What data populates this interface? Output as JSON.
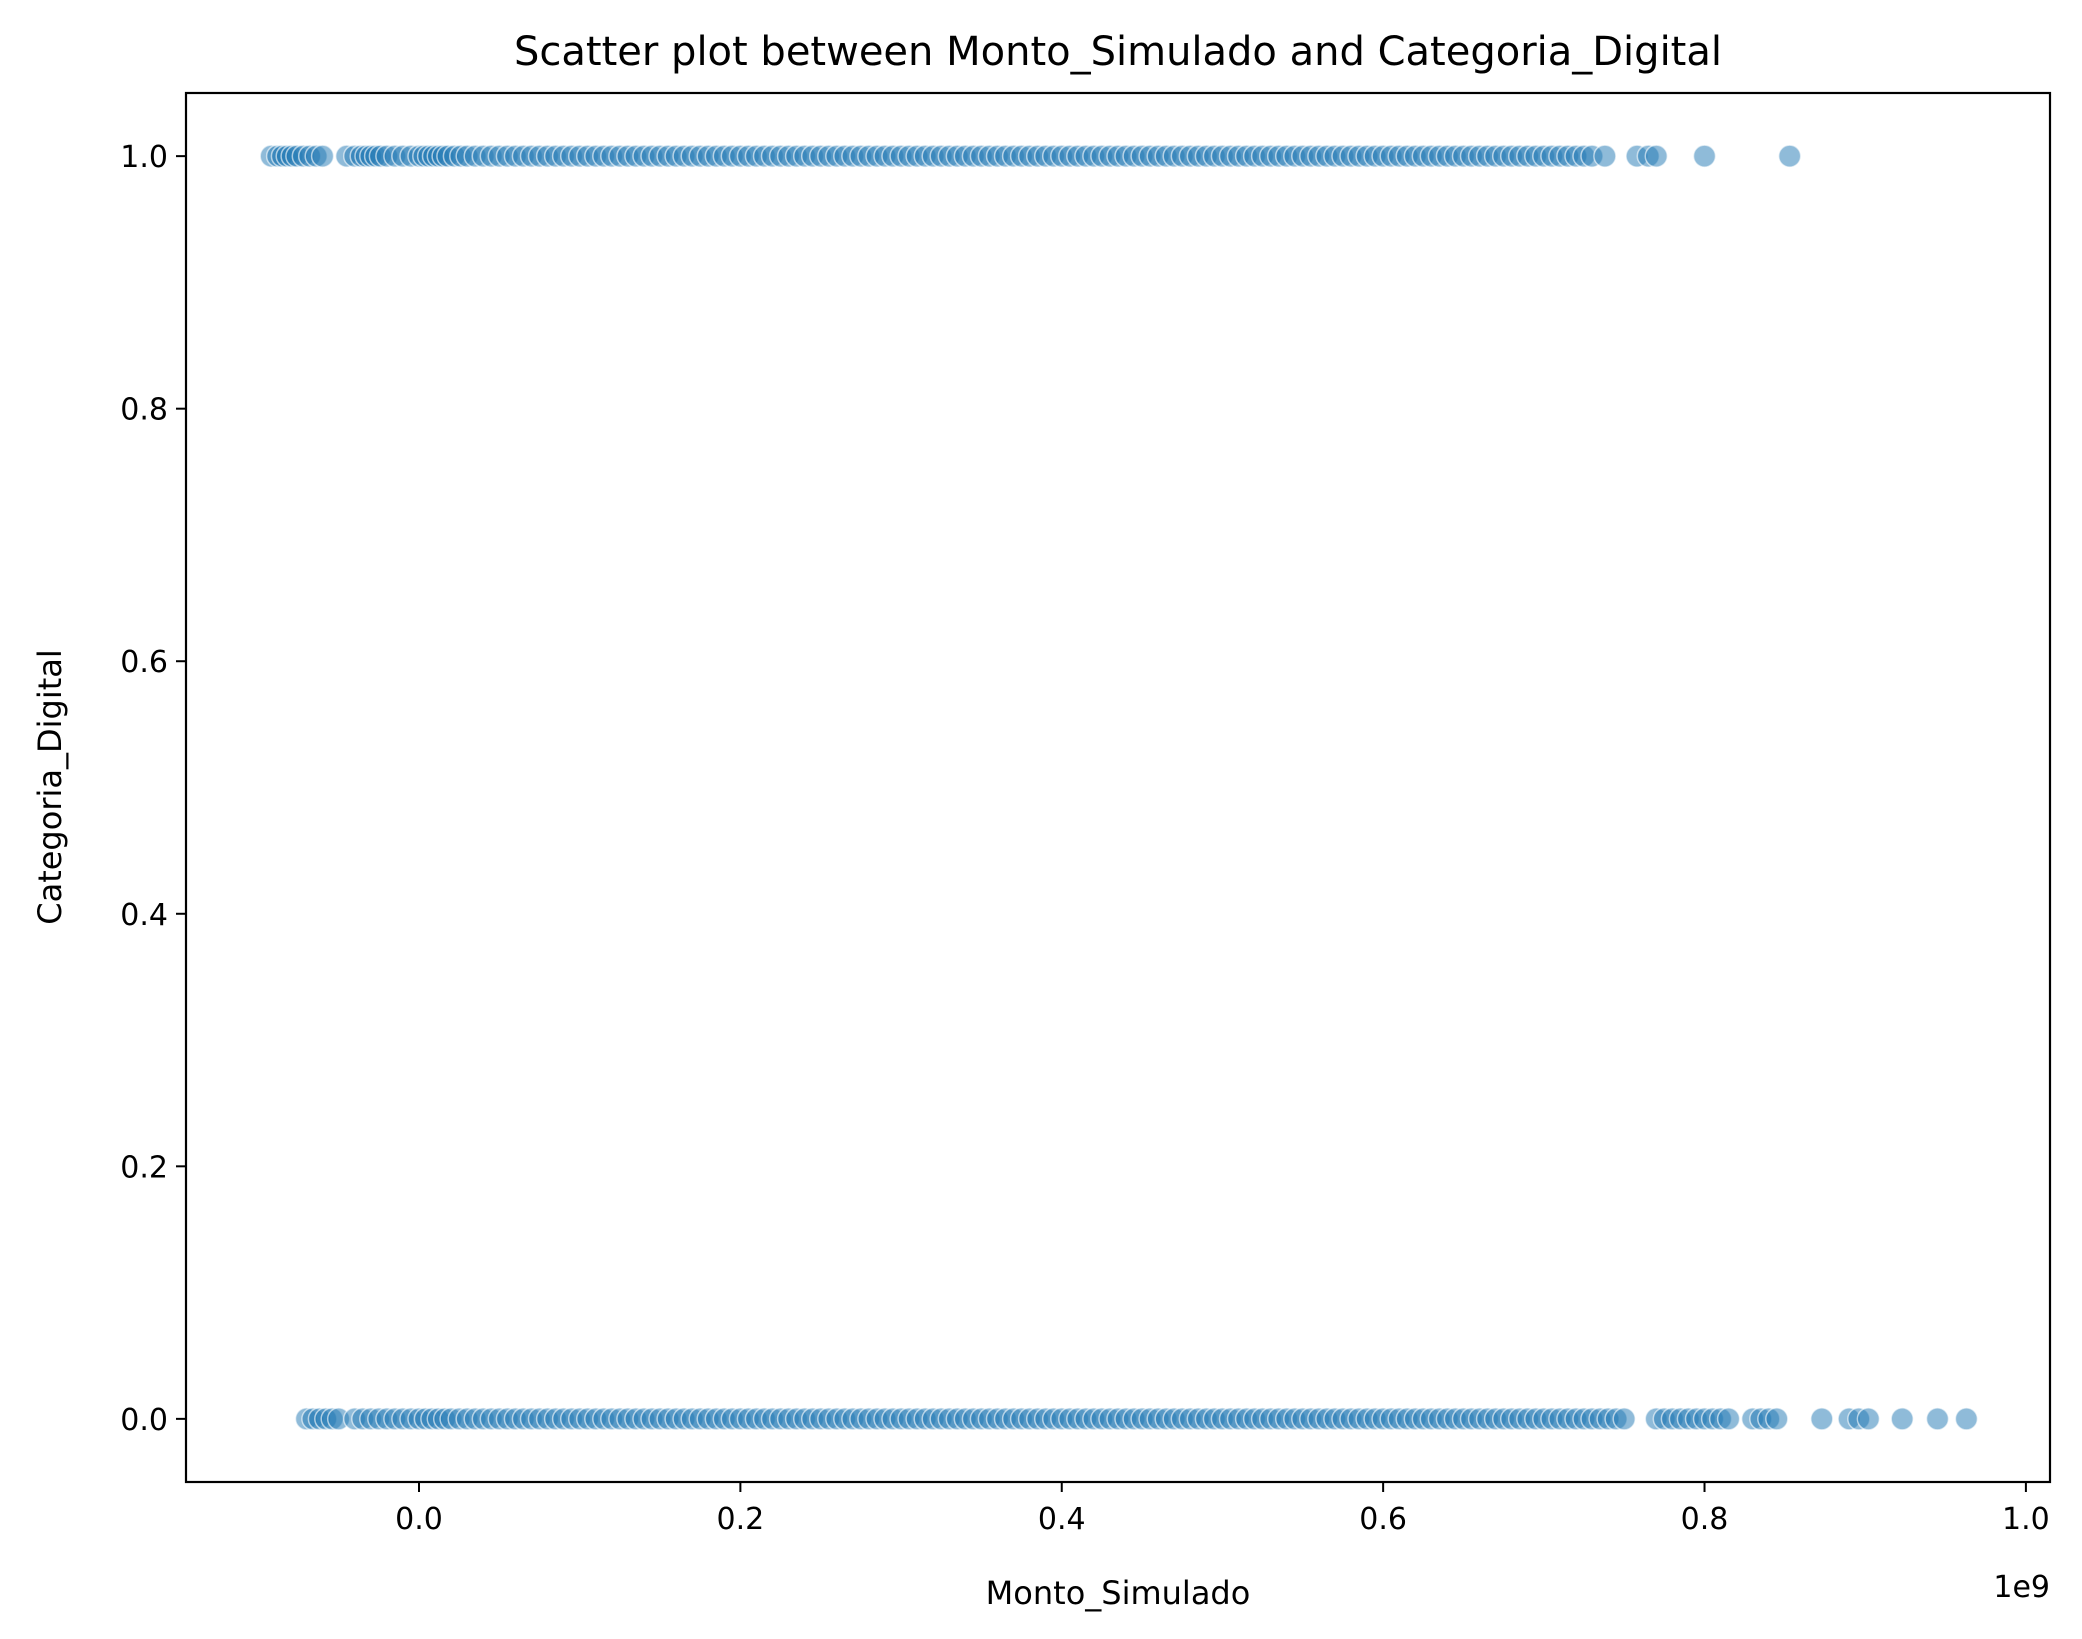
{
  "chart_data": {
    "type": "scatter",
    "title": "Scatter plot between Monto_Simulado and Categoria_Digital",
    "xlabel": "Monto_Simulado",
    "ylabel": "Categoria_Digital",
    "x_offset_label": "1e9",
    "xlim": [
      -0.145,
      1.015
    ],
    "ylim": [
      -0.05,
      1.05
    ],
    "x_ticks": [
      0.0,
      0.2,
      0.4,
      0.6,
      0.8,
      1.0
    ],
    "x_tick_labels": [
      "0.0",
      "0.2",
      "0.4",
      "0.6",
      "0.8",
      "1.0"
    ],
    "y_ticks": [
      0.0,
      0.2,
      0.4,
      0.6,
      0.8,
      1.0
    ],
    "y_tick_labels": [
      "0.0",
      "0.2",
      "0.4",
      "0.6",
      "0.8",
      "1.0"
    ],
    "grid": false,
    "legend": "none",
    "marker_color": "#1f77b4",
    "marker_alpha": 0.5,
    "series": [
      {
        "y": 1.0,
        "x": [
          -0.092,
          -0.088,
          -0.085,
          -0.082,
          -0.079,
          -0.076,
          -0.072,
          -0.068,
          -0.064,
          -0.06,
          -0.045,
          -0.04,
          -0.036,
          -0.033,
          -0.03,
          -0.027,
          -0.024,
          -0.02,
          -0.015,
          -0.01,
          -0.005,
          0.0,
          0.003,
          0.006,
          0.009,
          0.012,
          0.015,
          0.018,
          0.022,
          0.026,
          0.03,
          0.035,
          0.04,
          0.045,
          0.05,
          0.055,
          0.06,
          0.065,
          0.07,
          0.075,
          0.08,
          0.085,
          0.09,
          0.095,
          0.1,
          0.105,
          0.11,
          0.115,
          0.12,
          0.125,
          0.13,
          0.135,
          0.14,
          0.145,
          0.15,
          0.155,
          0.16,
          0.165,
          0.17,
          0.175,
          0.18,
          0.185,
          0.19,
          0.195,
          0.2,
          0.205,
          0.21,
          0.215,
          0.22,
          0.225,
          0.23,
          0.235,
          0.24,
          0.245,
          0.25,
          0.255,
          0.26,
          0.265,
          0.27,
          0.275,
          0.28,
          0.285,
          0.29,
          0.295,
          0.3,
          0.305,
          0.31,
          0.315,
          0.32,
          0.325,
          0.33,
          0.335,
          0.34,
          0.345,
          0.35,
          0.355,
          0.36,
          0.365,
          0.37,
          0.375,
          0.38,
          0.385,
          0.39,
          0.395,
          0.4,
          0.405,
          0.41,
          0.415,
          0.42,
          0.425,
          0.43,
          0.435,
          0.44,
          0.445,
          0.45,
          0.455,
          0.46,
          0.465,
          0.47,
          0.475,
          0.48,
          0.485,
          0.49,
          0.495,
          0.5,
          0.505,
          0.51,
          0.515,
          0.52,
          0.525,
          0.53,
          0.535,
          0.54,
          0.545,
          0.55,
          0.555,
          0.56,
          0.565,
          0.57,
          0.575,
          0.58,
          0.585,
          0.59,
          0.595,
          0.6,
          0.605,
          0.61,
          0.615,
          0.62,
          0.625,
          0.63,
          0.635,
          0.64,
          0.645,
          0.65,
          0.655,
          0.66,
          0.665,
          0.67,
          0.675,
          0.68,
          0.685,
          0.69,
          0.695,
          0.7,
          0.705,
          0.71,
          0.715,
          0.72,
          0.725,
          0.73,
          0.738,
          0.758,
          0.765,
          0.77,
          0.8,
          0.853
        ]
      },
      {
        "y": 0.0,
        "x": [
          -0.07,
          -0.066,
          -0.062,
          -0.058,
          -0.054,
          -0.05,
          -0.04,
          -0.035,
          -0.03,
          -0.025,
          -0.02,
          -0.015,
          -0.01,
          -0.005,
          0.0,
          0.004,
          0.008,
          0.012,
          0.016,
          0.02,
          0.025,
          0.03,
          0.035,
          0.04,
          0.045,
          0.05,
          0.055,
          0.06,
          0.065,
          0.07,
          0.075,
          0.08,
          0.085,
          0.09,
          0.095,
          0.1,
          0.105,
          0.11,
          0.115,
          0.12,
          0.125,
          0.13,
          0.135,
          0.14,
          0.145,
          0.15,
          0.155,
          0.16,
          0.165,
          0.17,
          0.175,
          0.18,
          0.185,
          0.19,
          0.195,
          0.2,
          0.205,
          0.21,
          0.215,
          0.22,
          0.225,
          0.23,
          0.235,
          0.24,
          0.245,
          0.25,
          0.255,
          0.26,
          0.265,
          0.27,
          0.275,
          0.28,
          0.285,
          0.29,
          0.295,
          0.3,
          0.305,
          0.31,
          0.315,
          0.32,
          0.325,
          0.33,
          0.335,
          0.34,
          0.345,
          0.35,
          0.355,
          0.36,
          0.365,
          0.37,
          0.375,
          0.38,
          0.385,
          0.39,
          0.395,
          0.4,
          0.405,
          0.41,
          0.415,
          0.42,
          0.425,
          0.43,
          0.435,
          0.44,
          0.445,
          0.45,
          0.455,
          0.46,
          0.465,
          0.47,
          0.475,
          0.48,
          0.485,
          0.49,
          0.495,
          0.5,
          0.505,
          0.51,
          0.515,
          0.52,
          0.525,
          0.53,
          0.535,
          0.54,
          0.545,
          0.55,
          0.555,
          0.56,
          0.565,
          0.57,
          0.575,
          0.58,
          0.585,
          0.59,
          0.595,
          0.6,
          0.605,
          0.61,
          0.615,
          0.62,
          0.625,
          0.63,
          0.635,
          0.64,
          0.645,
          0.65,
          0.655,
          0.66,
          0.665,
          0.67,
          0.675,
          0.68,
          0.685,
          0.69,
          0.695,
          0.7,
          0.705,
          0.71,
          0.715,
          0.72,
          0.725,
          0.73,
          0.735,
          0.74,
          0.745,
          0.75,
          0.77,
          0.775,
          0.78,
          0.785,
          0.79,
          0.795,
          0.8,
          0.805,
          0.81,
          0.815,
          0.83,
          0.835,
          0.84,
          0.845,
          0.873,
          0.89,
          0.896,
          0.902,
          0.923,
          0.945,
          0.963
        ]
      }
    ]
  }
}
